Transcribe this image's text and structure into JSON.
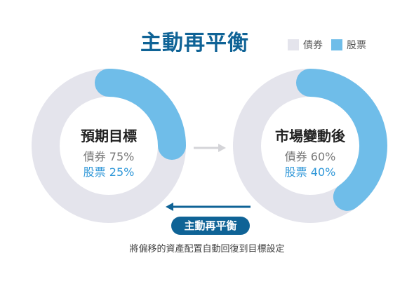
{
  "title": "主動再平衡",
  "legend": [
    {
      "label": "債券",
      "color": "#e4e4ec"
    },
    {
      "label": "股票",
      "color": "#6fbde9"
    }
  ],
  "colors": {
    "bond": "#e4e4ec",
    "stock": "#6fbde9",
    "accent": "#0f6396",
    "arrow_gray": "#d4d4d8"
  },
  "left_donut": {
    "label": "預期目標",
    "bond_text": "債券 75%",
    "stock_text": "股票 25%",
    "bond_pct": 75,
    "stock_pct": 25
  },
  "right_donut": {
    "label": "市場變動後",
    "bond_text": "債券 60%",
    "stock_text": "股票 40%",
    "bond_pct": 60,
    "stock_pct": 40
  },
  "rebalance_badge": "主動再平衡",
  "caption": "將偏移的資產配置自動回復到目標設定"
}
